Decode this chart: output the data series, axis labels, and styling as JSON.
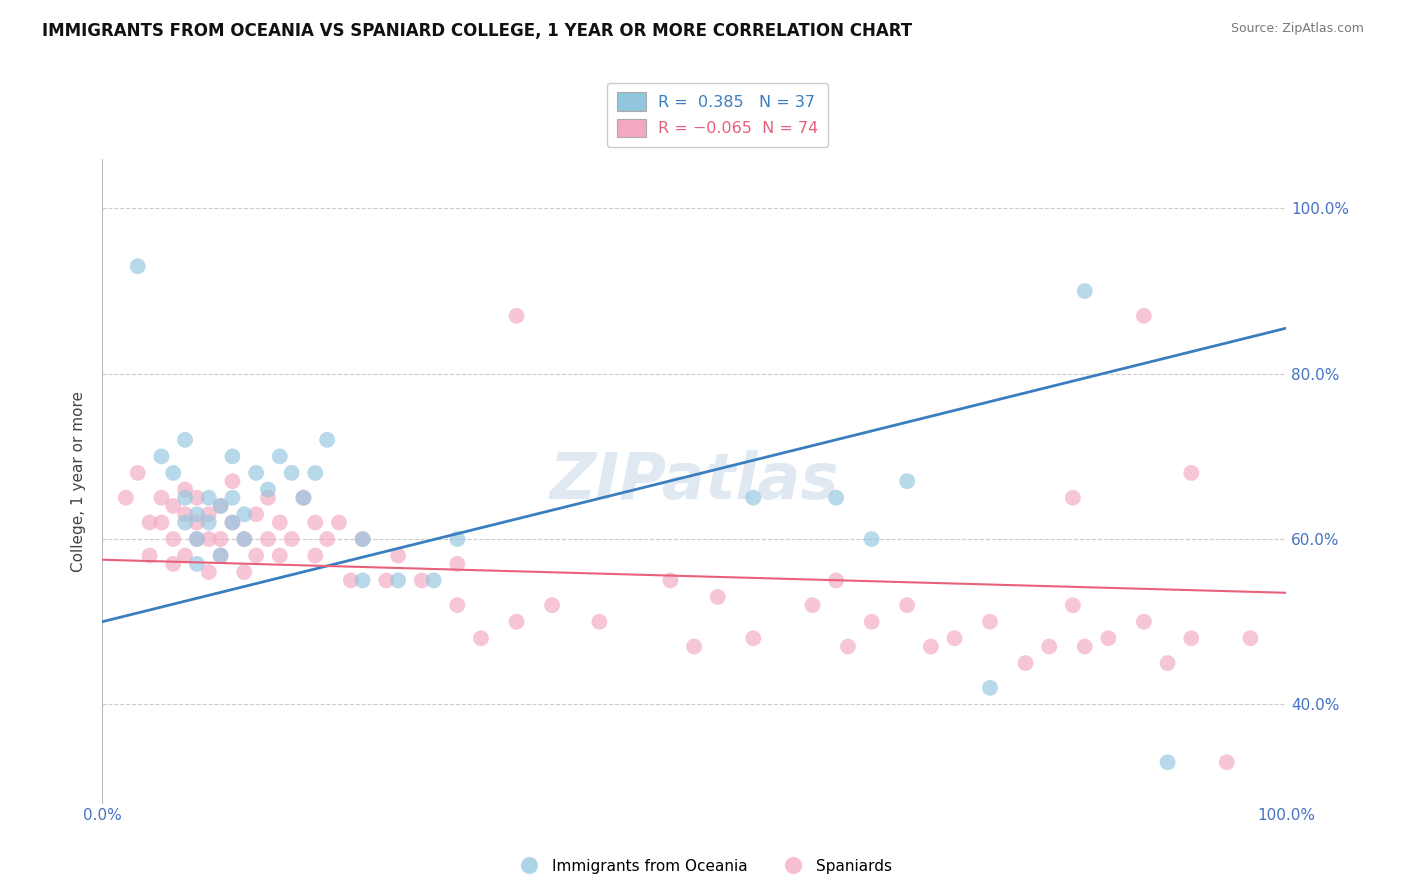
{
  "title": "IMMIGRANTS FROM OCEANIA VS SPANIARD COLLEGE, 1 YEAR OR MORE CORRELATION CHART",
  "source": "Source: ZipAtlas.com",
  "xlabel": "",
  "ylabel": "College, 1 year or more",
  "xlim": [
    0.0,
    1.0
  ],
  "ylim": [
    0.28,
    1.06
  ],
  "yticks": [
    0.4,
    0.6,
    0.8,
    1.0
  ],
  "ytick_labels": [
    "40.0%",
    "60.0%",
    "80.0%",
    "100.0%"
  ],
  "xticks": [
    0.0,
    1.0
  ],
  "xtick_labels": [
    "0.0%",
    "100.0%"
  ],
  "blue_R": 0.385,
  "blue_N": 37,
  "pink_R": -0.065,
  "pink_N": 74,
  "blue_color": "#92c5de",
  "pink_color": "#f4a8c0",
  "blue_line_color": "#3a7ebf",
  "pink_line_color": "#e8607a",
  "legend_label_blue": "Immigrants from Oceania",
  "legend_label_pink": "Spaniards",
  "watermark": "ZIPatlas",
  "blue_line_x0": 0.0,
  "blue_line_y0": 0.5,
  "blue_line_x1": 1.0,
  "blue_line_y1": 0.855,
  "pink_line_x0": 0.0,
  "pink_line_y0": 0.575,
  "pink_line_x1": 1.0,
  "pink_line_y1": 0.535,
  "blue_scatter_x": [
    0.03,
    0.05,
    0.06,
    0.07,
    0.07,
    0.07,
    0.08,
    0.08,
    0.08,
    0.09,
    0.09,
    0.1,
    0.1,
    0.11,
    0.11,
    0.11,
    0.12,
    0.12,
    0.13,
    0.14,
    0.15,
    0.16,
    0.17,
    0.18,
    0.19,
    0.22,
    0.22,
    0.25,
    0.28,
    0.3,
    0.55,
    0.62,
    0.65,
    0.68,
    0.75,
    0.83,
    0.9
  ],
  "blue_scatter_y": [
    0.93,
    0.7,
    0.68,
    0.62,
    0.65,
    0.72,
    0.6,
    0.63,
    0.57,
    0.65,
    0.62,
    0.58,
    0.64,
    0.62,
    0.65,
    0.7,
    0.6,
    0.63,
    0.68,
    0.66,
    0.7,
    0.68,
    0.65,
    0.68,
    0.72,
    0.55,
    0.6,
    0.55,
    0.55,
    0.6,
    0.65,
    0.65,
    0.6,
    0.67,
    0.42,
    0.9,
    0.33
  ],
  "pink_scatter_x": [
    0.02,
    0.03,
    0.04,
    0.04,
    0.05,
    0.05,
    0.06,
    0.06,
    0.06,
    0.07,
    0.07,
    0.07,
    0.08,
    0.08,
    0.08,
    0.09,
    0.09,
    0.09,
    0.1,
    0.1,
    0.1,
    0.11,
    0.11,
    0.12,
    0.12,
    0.13,
    0.13,
    0.14,
    0.14,
    0.15,
    0.15,
    0.16,
    0.17,
    0.18,
    0.18,
    0.19,
    0.2,
    0.21,
    0.22,
    0.24,
    0.25,
    0.27,
    0.3,
    0.3,
    0.32,
    0.35,
    0.38,
    0.42,
    0.48,
    0.5,
    0.52,
    0.55,
    0.6,
    0.62,
    0.63,
    0.65,
    0.68,
    0.7,
    0.72,
    0.75,
    0.78,
    0.8,
    0.82,
    0.83,
    0.85,
    0.88,
    0.9,
    0.92,
    0.95,
    0.97,
    0.35,
    0.82,
    0.88,
    0.92
  ],
  "pink_scatter_y": [
    0.65,
    0.68,
    0.62,
    0.58,
    0.62,
    0.65,
    0.6,
    0.64,
    0.57,
    0.63,
    0.66,
    0.58,
    0.6,
    0.65,
    0.62,
    0.56,
    0.6,
    0.63,
    0.6,
    0.64,
    0.58,
    0.62,
    0.67,
    0.6,
    0.56,
    0.63,
    0.58,
    0.6,
    0.65,
    0.58,
    0.62,
    0.6,
    0.65,
    0.58,
    0.62,
    0.6,
    0.62,
    0.55,
    0.6,
    0.55,
    0.58,
    0.55,
    0.57,
    0.52,
    0.48,
    0.5,
    0.52,
    0.5,
    0.55,
    0.47,
    0.53,
    0.48,
    0.52,
    0.55,
    0.47,
    0.5,
    0.52,
    0.47,
    0.48,
    0.5,
    0.45,
    0.47,
    0.52,
    0.47,
    0.48,
    0.5,
    0.45,
    0.48,
    0.33,
    0.48,
    0.87,
    0.65,
    0.87,
    0.68
  ]
}
